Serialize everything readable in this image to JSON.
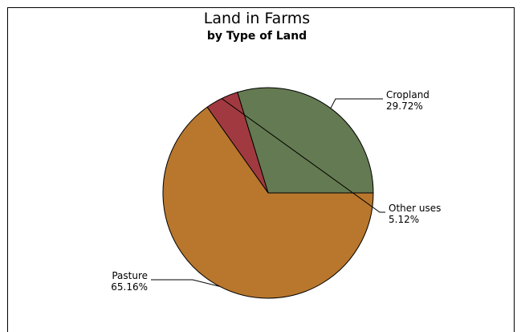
{
  "chart_data": {
    "type": "pie",
    "title": "Land in Farms",
    "subtitle": "by Type of Land",
    "slices": [
      {
        "label": "Cropland",
        "value": 29.72,
        "value_label": "29.72%",
        "color": "#647a52"
      },
      {
        "label": "Other uses",
        "value": 5.12,
        "value_label": "5.12%",
        "color": "#a13a40"
      },
      {
        "label": "Pasture",
        "value": 65.16,
        "value_label": "65.16%",
        "color": "#b8772d"
      }
    ],
    "start_angle_deg": 0,
    "direction": "counterclockwise",
    "legend": "none"
  }
}
